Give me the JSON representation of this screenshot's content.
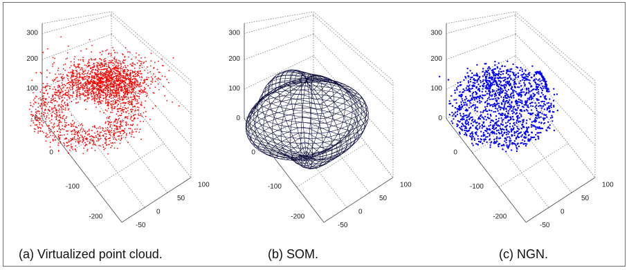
{
  "captions": {
    "a": "(a) Virtualized point cloud.",
    "b": "(b) SOM.",
    "c": "(c) NGN."
  },
  "chart_data": [
    {
      "type": "scatter",
      "projection": "3d",
      "caption": "(a) Virtualized point cloud.",
      "color": "#ff0000",
      "z_ticks": [
        "0",
        "100",
        "200",
        "300"
      ],
      "y_ticks": [
        "0",
        "-100",
        "-200"
      ],
      "x_ticks": [
        "-50",
        "0",
        "50",
        "100"
      ],
      "xlim": [
        -50,
        100
      ],
      "ylim": [
        -200,
        0
      ],
      "zlim": [
        0,
        300
      ],
      "grid": true,
      "description_of_data": "dense cloud of red points centered around x≈25, y≈-100, z≈80"
    },
    {
      "type": "mesh",
      "projection": "3d",
      "caption": "(b) SOM.",
      "color": "#0b0b3b",
      "z_ticks": [
        "0",
        "100",
        "200",
        "300"
      ],
      "y_ticks": [
        "0",
        "-100",
        "-200"
      ],
      "x_ticks": [
        "-50",
        "0",
        "50",
        "100"
      ],
      "xlim": [
        -50,
        100
      ],
      "ylim": [
        -200,
        0
      ],
      "zlim": [
        0,
        300
      ],
      "grid": true
    },
    {
      "type": "scatter",
      "projection": "3d",
      "caption": "(c) NGN.",
      "color": "#0000ff",
      "z_ticks": [
        "0",
        "100",
        "200",
        "300"
      ],
      "y_ticks": [
        "0",
        "-100",
        "-200"
      ],
      "x_ticks": [
        "-50",
        "0",
        "50",
        "100"
      ],
      "xlim": [
        -50,
        100
      ],
      "ylim": [
        -200,
        0
      ],
      "zlim": [
        0,
        300
      ],
      "grid": true
    }
  ]
}
